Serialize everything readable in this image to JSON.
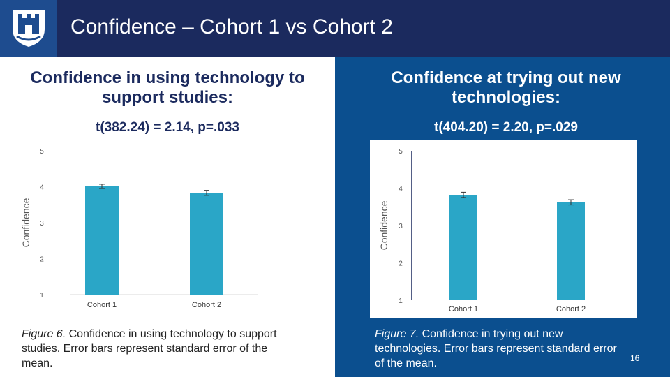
{
  "slide": {
    "title": "Confidence – Cohort 1 vs Cohort 2",
    "page_number": "16",
    "logo_icon": "castle-crest-icon"
  },
  "colors": {
    "header": "#1b2a5e",
    "logo_box": "#1e4c8f",
    "right_panel": "#0b4f8f",
    "bar": "#2aa6c7"
  },
  "left": {
    "title_line1": "Confidence in using technology to",
    "title_line2": "support studies:",
    "stat": "t(382.24) = 2.14, p=.033",
    "caption_fig": "Figure 6.",
    "caption_text": " Confidence in using technology to support studies. Error bars represent standard error of the mean."
  },
  "right": {
    "title_line1": "Confidence at trying out new",
    "title_line2": "technologies:",
    "stat": "t(404.20) = 2.20, p=.029",
    "caption_fig": "Figure 7.",
    "caption_text": " Confidence in trying out new technologies. Error bars represent standard error of the mean."
  },
  "chart_data": [
    {
      "type": "bar",
      "ylabel": "Confidence",
      "categories": [
        "Cohort 1",
        "Cohort 2"
      ],
      "series": [
        {
          "values": [
            4.01,
            3.83
          ],
          "errors": [
            0.06,
            0.07
          ]
        }
      ],
      "ylim": [
        1,
        5
      ],
      "yticks": [
        1,
        2,
        3,
        4,
        5
      ],
      "grid": false
    },
    {
      "type": "bar",
      "ylabel": "Confidence",
      "categories": [
        "Cohort 1",
        "Cohort 2"
      ],
      "series": [
        {
          "values": [
            3.82,
            3.62
          ],
          "errors": [
            0.07,
            0.07
          ]
        }
      ],
      "ylim": [
        1,
        5
      ],
      "yticks": [
        1,
        2,
        3,
        4,
        5
      ],
      "grid": false
    }
  ]
}
